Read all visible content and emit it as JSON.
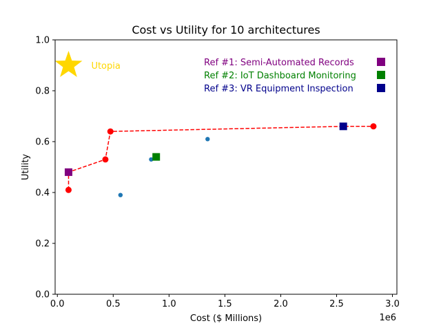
{
  "chart_data": {
    "type": "scatter",
    "title": "Cost vs Utility for 10 architectures",
    "xlabel": "Cost ($ Millions)",
    "ylabel": "Utility",
    "x_offset_label": "1e6",
    "xlim": [
      -20000,
      3040000
    ],
    "ylim": [
      0.0,
      1.0
    ],
    "x_ticks": [
      0,
      500000,
      1000000,
      1500000,
      2000000,
      2500000,
      3000000
    ],
    "x_tick_labels": [
      "0.0",
      "0.5",
      "1.0",
      "1.5",
      "2.0",
      "2.5",
      "3.0"
    ],
    "y_ticks": [
      0.0,
      0.2,
      0.4,
      0.6,
      0.8,
      1.0
    ],
    "y_tick_labels": [
      "0.0",
      "0.2",
      "0.4",
      "0.6",
      "0.8",
      "1.0"
    ],
    "grid": false,
    "legend_placement": "top-right",
    "utopia": {
      "label": "Utopia",
      "x": 100000,
      "y": 0.9,
      "color": "#FFD700"
    },
    "architectures": [
      {
        "x": 565000,
        "y": 0.39
      },
      {
        "x": 840000,
        "y": 0.53
      },
      {
        "x": 1345000,
        "y": 0.61
      }
    ],
    "pareto_front": [
      {
        "x": 100000,
        "y": 0.41
      },
      {
        "x": 430000,
        "y": 0.53
      },
      {
        "x": 475000,
        "y": 0.64
      },
      {
        "x": 2830000,
        "y": 0.66
      }
    ],
    "pareto_line": [
      {
        "x": 100000,
        "y": 0.41
      },
      {
        "x": 100000,
        "y": 0.48
      },
      {
        "x": 430000,
        "y": 0.53
      },
      {
        "x": 475000,
        "y": 0.64
      },
      {
        "x": 2560000,
        "y": 0.66
      },
      {
        "x": 2830000,
        "y": 0.66
      }
    ],
    "references": [
      {
        "label": "Ref #1: Semi-Automated Records",
        "x": 100000,
        "y": 0.48,
        "color": "#800080"
      },
      {
        "label": "Ref #2: IoT Dashboard Monitoring",
        "x": 885000,
        "y": 0.54,
        "color": "#008000"
      },
      {
        "label": "Ref #3: VR Equipment Inspection",
        "x": 2560000,
        "y": 0.66,
        "color": "#00008B"
      }
    ],
    "colors": {
      "architecture": "#1f77b4",
      "pareto": "#FF0000"
    }
  }
}
